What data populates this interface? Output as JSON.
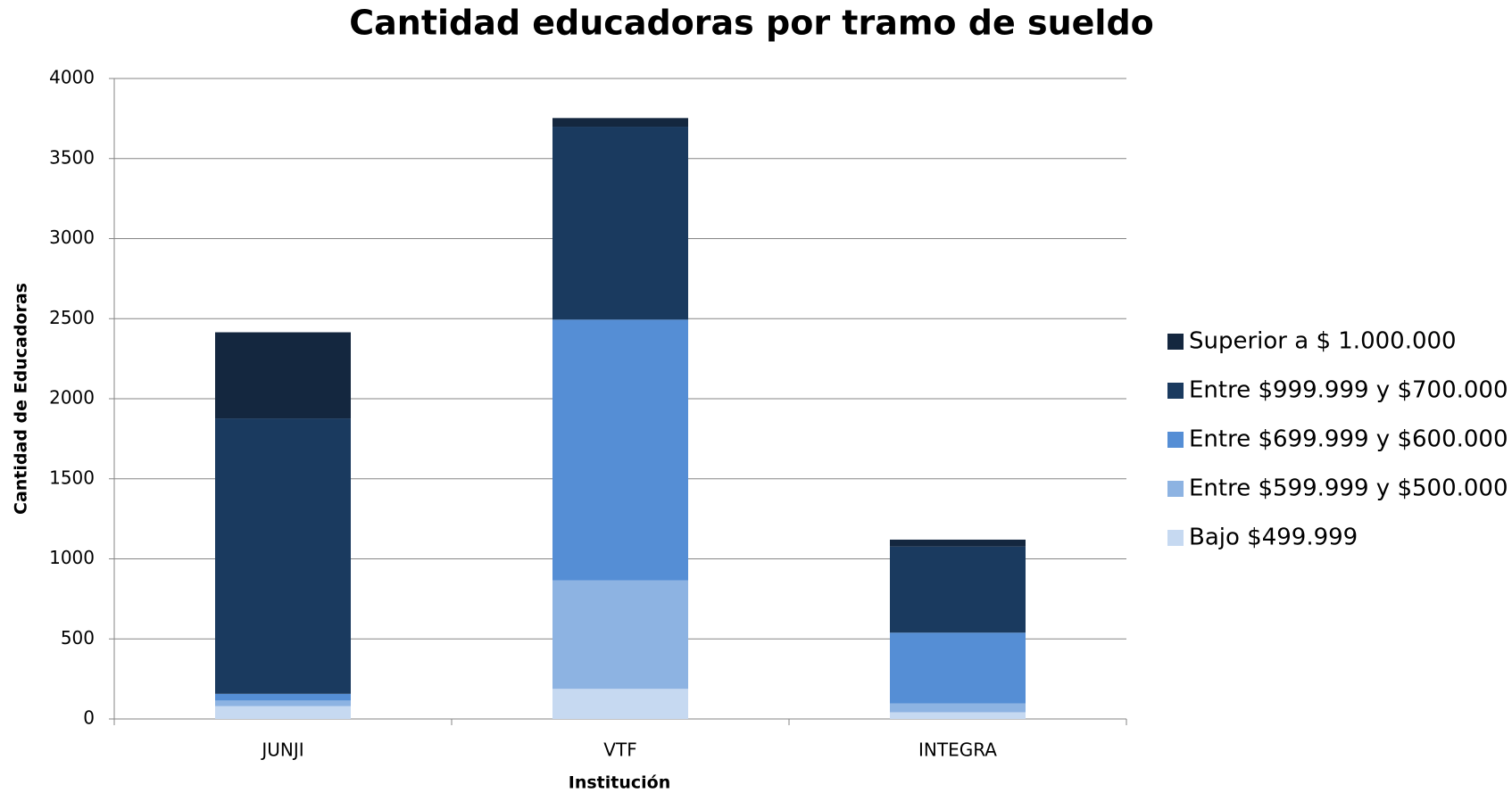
{
  "chart_data": {
    "type": "stacked-bar",
    "title": "Cantidad educadoras por tramo de sueldo",
    "x_label": "Institución",
    "y_label": "Cantidad de Educadoras",
    "categories": [
      "JUNJI",
      "VTF",
      "INTEGRA"
    ],
    "series": [
      {
        "name": "Bajo $499.999",
        "color": "#c6d9f1",
        "values": [
          80,
          188,
          42
        ]
      },
      {
        "name": "Entre $599.999 y $500.000",
        "color": "#8db3e2",
        "values": [
          35,
          678,
          55
        ]
      },
      {
        "name": "Entre $699.999 y $600.000",
        "color": "#558ed5",
        "values": [
          42,
          1628,
          442
        ]
      },
      {
        "name": "Entre $999.999 y $700.000",
        "color": "#1a3a5f",
        "values": [
          1720,
          1205,
          538
        ]
      },
      {
        "name": "Superior a $ 1.000.000",
        "color": "#14273f",
        "values": [
          538,
          54,
          43
        ]
      }
    ],
    "ylim": [
      0,
      4000
    ],
    "yticks": [
      0,
      500,
      1000,
      1500,
      2000,
      2500,
      3000,
      3500,
      4000
    ],
    "grid": true,
    "legend": "right"
  }
}
